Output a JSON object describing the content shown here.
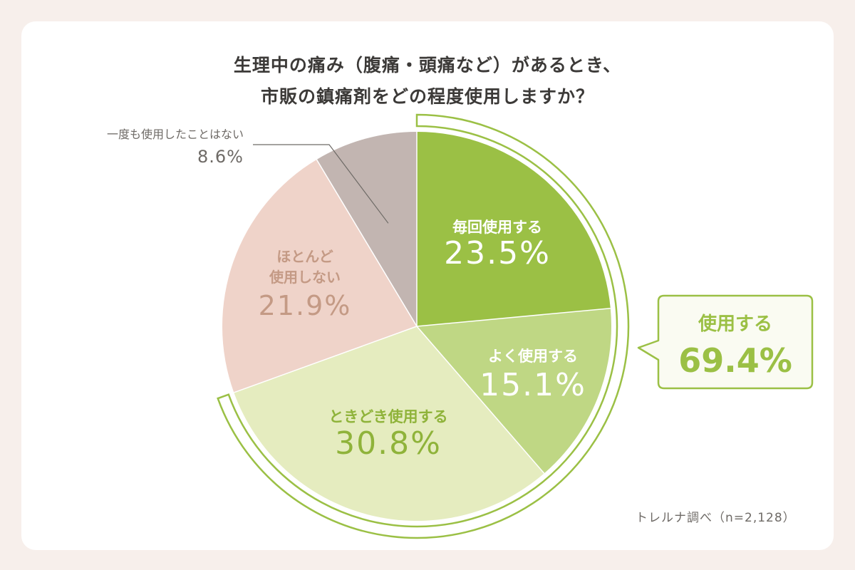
{
  "title": {
    "line1": "生理中の痛み（腹痛・頭痛など）があるとき、",
    "line2": "市販の鎮痛剤をどの程度使用しますか？"
  },
  "source": "トレルナ調べ（n=2,128）",
  "chart_data": {
    "type": "pie",
    "start": "12 o'clock, clockwise",
    "slices": [
      {
        "label": "毎回使用する",
        "value": 23.5,
        "value_label": "23.5%",
        "color": "#9bc045",
        "text_color": "#ffffff"
      },
      {
        "label": "よく使用する",
        "value": 15.1,
        "value_label": "15.1%",
        "color": "#bfd784",
        "text_color": "#ffffff"
      },
      {
        "label": "ときどき使用する",
        "value": 30.8,
        "value_label": "30.8%",
        "color": "#e5ecbf",
        "text_color": "#8fb33a"
      },
      {
        "label": "ほとんど使用しない",
        "label_lines": [
          "ほとんど",
          "使用しない"
        ],
        "value": 21.9,
        "value_label": "21.9%",
        "color": "#efd3c9",
        "text_color": "#c49a85"
      },
      {
        "label": "一度も使用したことはない",
        "value": 8.6,
        "value_label": "8.6%",
        "color": "#c2b5b1",
        "text_color": "#6e6a66"
      }
    ],
    "group": {
      "label": "使用する",
      "value": 69.4,
      "value_label": "69.4%",
      "covers": [
        "毎回使用する",
        "よく使用する",
        "ときどき使用する"
      ],
      "color": "#9bc045"
    }
  }
}
